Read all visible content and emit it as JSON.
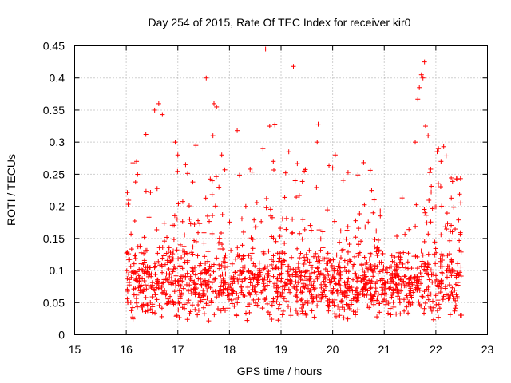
{
  "chart_data": {
    "type": "scatter",
    "title": "Day 254 of 2015, Rate Of TEC Index for receiver kir0",
    "xlabel": "GPS time / hours",
    "ylabel": "ROTI / TECUs",
    "xlim": [
      15,
      23
    ],
    "ylim": [
      0,
      0.45
    ],
    "grid": true,
    "marker": "+",
    "color": "#ff0000",
    "x_ticks": [
      "15",
      "16",
      "17",
      "18",
      "19",
      "20",
      "21",
      "22",
      "23"
    ],
    "y_ticks": [
      "0",
      "0.05",
      "0.1",
      "0.15",
      "0.2",
      "0.25",
      "0.3",
      "0.35",
      "0.4",
      "0.45"
    ],
    "series": [
      {
        "name": "kir0",
        "points": [
          [
            18.7,
            0.445
          ],
          [
            19.24,
            0.418
          ],
          [
            21.78,
            0.425
          ],
          [
            21.72,
            0.405
          ],
          [
            21.75,
            0.4
          ],
          [
            17.55,
            0.4
          ],
          [
            21.68,
            0.385
          ],
          [
            21.65,
            0.367
          ],
          [
            16.63,
            0.36
          ],
          [
            17.7,
            0.36
          ],
          [
            16.55,
            0.35
          ],
          [
            17.75,
            0.355
          ],
          [
            16.7,
            0.343
          ],
          [
            19.72,
            0.328
          ],
          [
            18.88,
            0.327
          ],
          [
            18.78,
            0.325
          ],
          [
            21.8,
            0.325
          ],
          [
            18.15,
            0.318
          ],
          [
            16.38,
            0.312
          ],
          [
            21.85,
            0.31
          ],
          [
            17.68,
            0.31
          ],
          [
            16.95,
            0.3
          ],
          [
            17.35,
            0.295
          ],
          [
            19.7,
            0.3
          ],
          [
            21.6,
            0.3
          ],
          [
            18.65,
            0.29
          ],
          [
            22.05,
            0.29
          ],
          [
            19.15,
            0.285
          ],
          [
            17.0,
            0.28
          ],
          [
            17.85,
            0.28
          ],
          [
            20.05,
            0.28
          ],
          [
            16.2,
            0.27
          ],
          [
            17.15,
            0.265
          ],
          [
            18.85,
            0.27
          ],
          [
            20.6,
            0.268
          ],
          [
            22.1,
            0.27
          ],
          [
            18.4,
            0.258
          ],
          [
            19.45,
            0.255
          ],
          [
            20.0,
            0.26
          ],
          [
            21.9,
            0.258
          ]
        ]
      }
    ]
  }
}
